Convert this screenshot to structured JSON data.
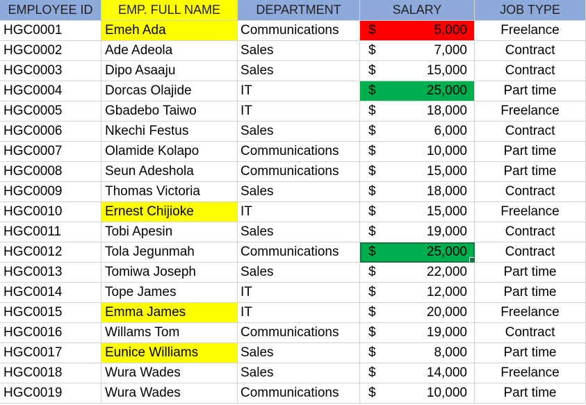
{
  "colors": {
    "header_bg": "#8eaadb",
    "name_header_bg": "#ffff00",
    "highlight_yellow": "#ffff00",
    "highlight_red": "#ff0000",
    "highlight_green": "#00b050",
    "selection": "#1e7145"
  },
  "headers": [
    "EMPLOYEE ID",
    "EMP. FULL NAME",
    "DEPARTMENT",
    "SALARY",
    "JOB TYPE"
  ],
  "currency_symbol": "$",
  "rows": [
    {
      "id": "HGC0001",
      "name": "Emeh Ada",
      "dept": "Communications",
      "salary": "5,000",
      "job": "Freelance",
      "name_hl": "yellow",
      "salary_hl": "red"
    },
    {
      "id": "HGC0002",
      "name": "Ade Adeola",
      "dept": "Sales",
      "salary": "7,000",
      "job": "Contract"
    },
    {
      "id": "HGC0003",
      "name": "Dipo Asaaju",
      "dept": "Sales",
      "salary": "15,000",
      "job": "Contract"
    },
    {
      "id": "HGC0004",
      "name": "Dorcas Olajide",
      "dept": "IT",
      "salary": "25,000",
      "job": "Part time",
      "salary_hl": "green"
    },
    {
      "id": "HGC0005",
      "name": "Gbadebo Taiwo",
      "dept": "IT",
      "salary": "18,000",
      "job": "Freelance"
    },
    {
      "id": "HGC0006",
      "name": "Nkechi Festus",
      "dept": "Sales",
      "salary": "6,000",
      "job": "Contract"
    },
    {
      "id": "HGC0007",
      "name": "Olamide Kolapo",
      "dept": "Communications",
      "salary": "10,000",
      "job": "Part time"
    },
    {
      "id": "HGC0008",
      "name": "Seun Adeshola",
      "dept": "Communications",
      "salary": "15,000",
      "job": "Part time"
    },
    {
      "id": "HGC0009",
      "name": "Thomas Victoria",
      "dept": "Sales",
      "salary": "18,000",
      "job": "Contract"
    },
    {
      "id": "HGC0010",
      "name": "Ernest Chijioke",
      "dept": "IT",
      "salary": "15,000",
      "job": "Freelance",
      "name_hl": "yellow"
    },
    {
      "id": "HGC0011",
      "name": "Tobi Apesin",
      "dept": "Sales",
      "salary": "19,000",
      "job": "Contract"
    },
    {
      "id": "HGC0012",
      "name": "Tola Jegunmah",
      "dept": "Communications",
      "salary": "25,000",
      "job": "Contract",
      "salary_hl": "green",
      "selected": true
    },
    {
      "id": "HGC0013",
      "name": "Tomiwa Joseph",
      "dept": "Sales",
      "salary": "22,000",
      "job": "Part time"
    },
    {
      "id": "HGC0014",
      "name": "Tope James",
      "dept": "IT",
      "salary": "12,000",
      "job": "Part time"
    },
    {
      "id": "HGC0015",
      "name": "Emma James",
      "dept": "IT",
      "salary": "20,000",
      "job": "Freelance",
      "name_hl": "yellow"
    },
    {
      "id": "HGC0016",
      "name": "Willams Tom",
      "dept": "Communications",
      "salary": "19,000",
      "job": "Contract"
    },
    {
      "id": "HGC0017",
      "name": "Eunice Williams",
      "dept": "Sales",
      "salary": "8,000",
      "job": "Part time",
      "name_hl": "yellow"
    },
    {
      "id": "HGC0018",
      "name": "Wura Wades",
      "dept": "Sales",
      "salary": "14,000",
      "job": "Freelance"
    },
    {
      "id": "HGC0019",
      "name": "Wura Wades",
      "dept": "Communications",
      "salary": "10,000",
      "job": "Part time"
    }
  ]
}
